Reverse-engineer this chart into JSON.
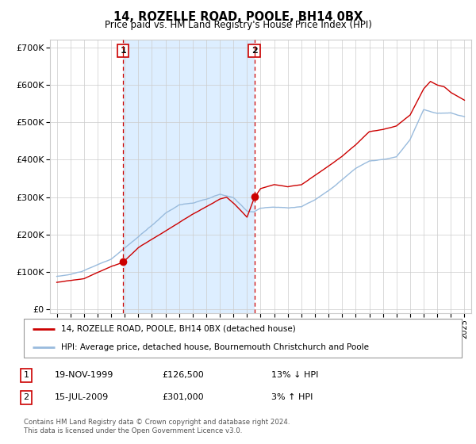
{
  "title": "14, ROZELLE ROAD, POOLE, BH14 0BX",
  "subtitle": "Price paid vs. HM Land Registry's House Price Index (HPI)",
  "ylabel_ticks": [
    "£0",
    "£100K",
    "£200K",
    "£300K",
    "£400K",
    "£500K",
    "£600K",
    "£700K"
  ],
  "ytick_vals": [
    0,
    100000,
    200000,
    300000,
    400000,
    500000,
    600000,
    700000
  ],
  "ylim": [
    -10000,
    720000
  ],
  "sale1_x": 1999.88,
  "sale1_y": 126500,
  "sale2_x": 2009.54,
  "sale2_y": 301000,
  "line_color_property": "#cc0000",
  "line_color_hpi": "#99bbdd",
  "vline_color": "#cc0000",
  "shade_color": "#ddeeff",
  "legend_entries": [
    "14, ROZELLE ROAD, POOLE, BH14 0BX (detached house)",
    "HPI: Average price, detached house, Bournemouth Christchurch and Poole"
  ],
  "table_rows": [
    {
      "num": "1",
      "date": "19-NOV-1999",
      "price": "£126,500",
      "hpi": "13% ↓ HPI"
    },
    {
      "num": "2",
      "date": "15-JUL-2009",
      "price": "£301,000",
      "hpi": "3% ↑ HPI"
    }
  ],
  "footer": "Contains HM Land Registry data © Crown copyright and database right 2024.\nThis data is licensed under the Open Government Licence v3.0.",
  "xticks": [
    1995,
    1996,
    1997,
    1998,
    1999,
    2000,
    2001,
    2002,
    2003,
    2004,
    2005,
    2006,
    2007,
    2008,
    2009,
    2010,
    2011,
    2012,
    2013,
    2014,
    2015,
    2016,
    2017,
    2018,
    2019,
    2020,
    2021,
    2022,
    2023,
    2024,
    2025
  ],
  "xlim": [
    1994.5,
    2025.5
  ]
}
